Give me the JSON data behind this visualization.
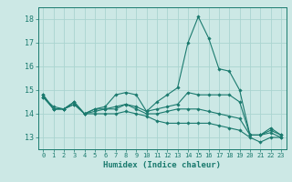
{
  "xlabel": "Humidex (Indice chaleur)",
  "ylabel": "",
  "background_color": "#cce8e5",
  "grid_color": "#aad4d0",
  "line_color": "#1a7a6e",
  "xlim": [
    -0.5,
    23.5
  ],
  "ylim": [
    12.5,
    18.5
  ],
  "yticks": [
    13,
    14,
    15,
    16,
    17,
    18
  ],
  "xticks": [
    0,
    1,
    2,
    3,
    4,
    5,
    6,
    7,
    8,
    9,
    10,
    11,
    12,
    13,
    14,
    15,
    16,
    17,
    18,
    19,
    20,
    21,
    22,
    23
  ],
  "lines": [
    {
      "x": [
        0,
        1,
        2,
        3,
        4,
        5,
        6,
        7,
        8,
        9,
        10,
        11,
        12,
        13,
        14,
        15,
        16,
        17,
        18,
        19,
        20,
        21,
        22,
        23
      ],
      "y": [
        14.8,
        14.2,
        14.2,
        14.5,
        14.0,
        14.2,
        14.3,
        14.8,
        14.9,
        14.8,
        14.1,
        14.5,
        14.8,
        15.1,
        17.0,
        18.1,
        17.2,
        15.9,
        15.8,
        15.0,
        13.1,
        13.1,
        13.3,
        13.1
      ]
    },
    {
      "x": [
        0,
        1,
        2,
        3,
        4,
        5,
        6,
        7,
        8,
        9,
        10,
        11,
        12,
        13,
        14,
        15,
        16,
        17,
        18,
        19,
        20,
        21,
        22,
        23
      ],
      "y": [
        14.8,
        14.2,
        14.2,
        14.5,
        14.0,
        14.2,
        14.2,
        14.3,
        14.4,
        14.3,
        14.1,
        14.2,
        14.3,
        14.4,
        14.9,
        14.8,
        14.8,
        14.8,
        14.8,
        14.5,
        13.1,
        13.1,
        13.4,
        13.1
      ]
    },
    {
      "x": [
        0,
        1,
        2,
        3,
        4,
        5,
        6,
        7,
        8,
        9,
        10,
        11,
        12,
        13,
        14,
        15,
        16,
        17,
        18,
        19,
        20,
        21,
        22,
        23
      ],
      "y": [
        14.7,
        14.3,
        14.2,
        14.4,
        14.0,
        14.1,
        14.2,
        14.2,
        14.4,
        14.2,
        14.0,
        14.0,
        14.1,
        14.2,
        14.2,
        14.2,
        14.1,
        14.0,
        13.9,
        13.8,
        13.1,
        13.1,
        13.2,
        13.0
      ]
    },
    {
      "x": [
        0,
        1,
        2,
        3,
        4,
        5,
        6,
        7,
        8,
        9,
        10,
        11,
        12,
        13,
        14,
        15,
        16,
        17,
        18,
        19,
        20,
        21,
        22,
        23
      ],
      "y": [
        14.7,
        14.2,
        14.2,
        14.4,
        14.0,
        14.0,
        14.0,
        14.0,
        14.1,
        14.0,
        13.9,
        13.7,
        13.6,
        13.6,
        13.6,
        13.6,
        13.6,
        13.5,
        13.4,
        13.3,
        13.0,
        12.8,
        13.0,
        13.0
      ]
    }
  ]
}
